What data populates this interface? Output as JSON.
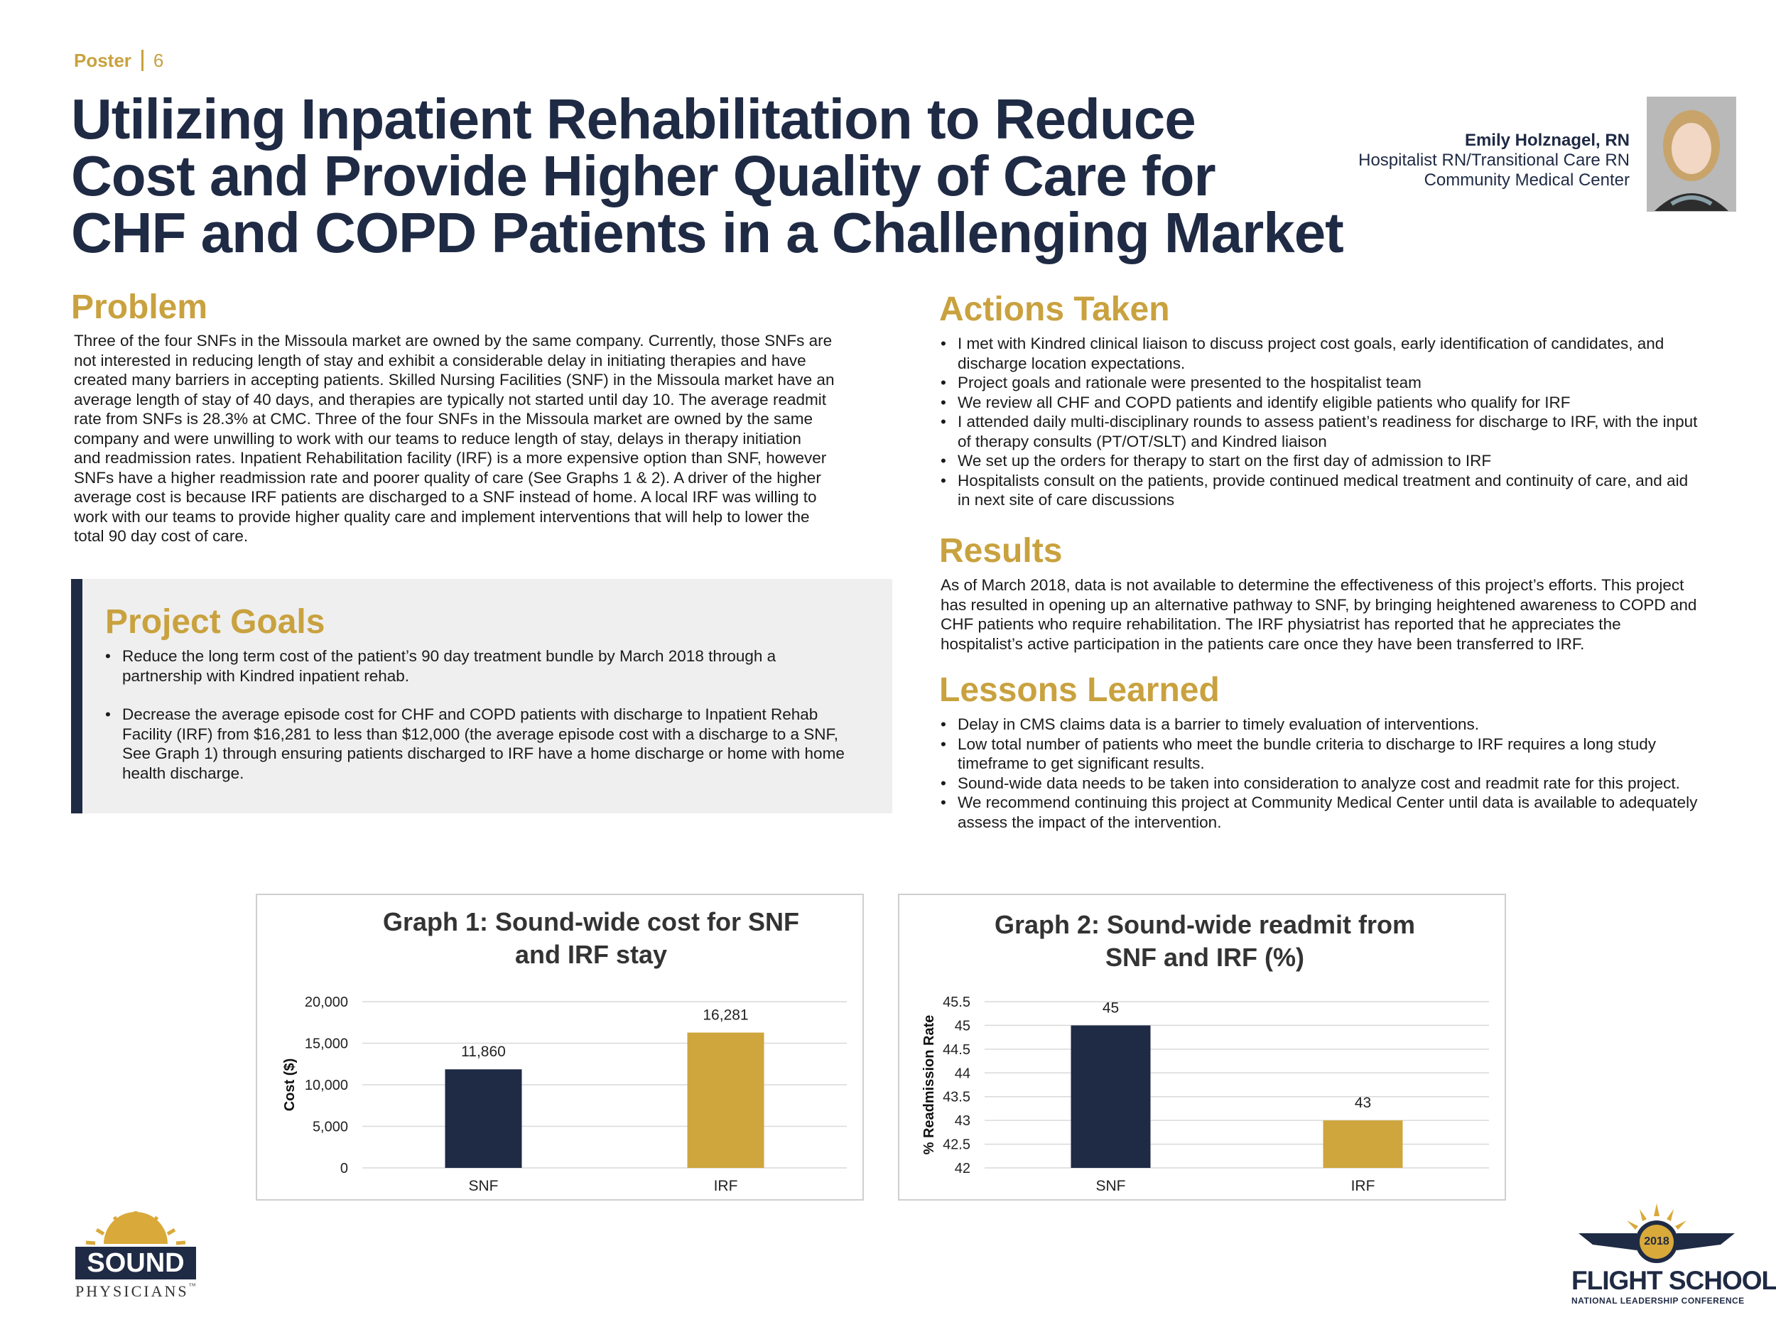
{
  "header": {
    "poster_label": "Poster",
    "poster_number": "6",
    "title_lines": [
      "Utilizing Inpatient Rehabilitation to Reduce",
      "Cost and Provide Higher Quality of Care for",
      "CHF and COPD Patients in a Challenging Market"
    ]
  },
  "author": {
    "name": "Emily Holznagel, RN",
    "role": "Hospitalist RN/Transitional Care RN",
    "organization": "Community Medical Center"
  },
  "problem": {
    "heading": "Problem",
    "lines": [
      "Three of the four SNFs in the Missoula market are owned by the same company.  Currently, those SNFs are",
      "not interested in reducing length of stay and exhibit a considerable delay in initiating therapies and have",
      "created many barriers in accepting patients.  Skilled Nursing Facilities (SNF) in the Missoula market have an",
      "average length of stay of 40 days, and therapies are typically not started until day 10. The average readmit",
      "rate from SNFs is 28.3% at CMC. Three of the four SNFs in the Missoula market are owned by the same",
      "company and were unwilling to work with our teams to reduce length of stay, delays in therapy initiation",
      "and readmission rates.  Inpatient Rehabilitation facility (IRF) is a more expensive option than SNF, however",
      "SNFs have a higher readmission rate and poorer quality of care (See Graphs 1 & 2).  A driver of the higher",
      "average cost is because IRF patients are discharged to a SNF instead of home.  A local IRF was willing to",
      "work with our teams to provide higher quality care and implement interventions that will help to lower the",
      "total 90 day cost of care."
    ]
  },
  "goals": {
    "heading": "Project Goals",
    "items": [
      [
        "Reduce the long term cost of the patient’s 90 day treatment bundle by March 2018 through a",
        "partnership with Kindred inpatient rehab."
      ],
      [
        "Decrease the average episode cost for CHF and COPD patients with discharge to Inpatient Rehab",
        "Facility (IRF) from $16,281 to less than $12,000 (the average episode cost with a discharge to a SNF,",
        "See Graph 1) through ensuring patients discharged to IRF have a home discharge or home with home",
        "health discharge."
      ]
    ]
  },
  "actions": {
    "heading": "Actions Taken",
    "items": [
      [
        "I met with Kindred clinical liaison to discuss project cost goals, early identification of candidates, and",
        "discharge location expectations."
      ],
      [
        "Project goals and rationale were presented to the hospitalist team"
      ],
      [
        "We review all CHF and COPD patients and identify eligible patients who qualify for IRF"
      ],
      [
        "I attended daily multi-disciplinary rounds to assess patient’s readiness for discharge to IRF, with the input",
        "of therapy consults (PT/OT/SLT) and Kindred liaison"
      ],
      [
        "We set up the orders for therapy to start on the first day of admission to IRF"
      ],
      [
        "Hospitalists consult on the patients, provide continued medical treatment and continuity of care, and aid",
        "in next site of care discussions"
      ]
    ]
  },
  "results": {
    "heading": "Results",
    "lines": [
      "As of March 2018, data is not available to determine the effectiveness of this project’s efforts. This project",
      "has resulted in opening up an alternative pathway to SNF, by bringing heightened awareness to COPD and",
      "CHF patients who require rehabilitation. The IRF physiatrist has reported that he appreciates the",
      "hospitalist’s active participation in the patients care once they have been transferred to IRF."
    ]
  },
  "lessons": {
    "heading": "Lessons Learned",
    "items": [
      [
        "Delay in CMS claims data is a barrier to timely evaluation of interventions."
      ],
      [
        "Low total number of patients who meet the bundle criteria to discharge to IRF requires a long study",
        "timeframe to get significant results."
      ],
      [
        "Sound-wide data needs to be taken into consideration to analyze cost and readmit rate for this project."
      ],
      [
        "We recommend continuing this project at Community Medical Center until data is available to adequately",
        "assess the impact of the intervention."
      ]
    ]
  },
  "chart_data": [
    {
      "type": "bar",
      "title": "Graph 1: Sound-wide cost for SNF and IRF stay",
      "title_lines": [
        "Graph 1: Sound-wide cost for SNF",
        "and IRF stay"
      ],
      "categories": [
        "SNF",
        "IRF"
      ],
      "values": [
        11860,
        16281
      ],
      "value_labels": [
        "11,860",
        "16,281"
      ],
      "ylabel": "Cost ($)",
      "xlabel": "",
      "ylim": [
        0,
        20000
      ],
      "yticks": [
        0,
        5000,
        10000,
        15000,
        20000
      ],
      "ytick_labels": [
        "0",
        "5,000",
        "10,000",
        "15,000",
        "20,000"
      ],
      "grid": true,
      "colors": [
        "#1f2a44",
        "#cfa63d"
      ]
    },
    {
      "type": "bar",
      "title": "Graph 2: Sound-wide readmit from SNF and IRF (%)",
      "title_lines": [
        "Graph 2: Sound-wide readmit from",
        "SNF and IRF (%)"
      ],
      "categories": [
        "SNF",
        "IRF"
      ],
      "values": [
        45,
        43
      ],
      "value_labels": [
        "45",
        "43"
      ],
      "ylabel": "% Readmission Rate",
      "xlabel": "",
      "ylim": [
        42,
        45.5
      ],
      "yticks": [
        42,
        42.5,
        43,
        43.5,
        44,
        44.5,
        45,
        45.5
      ],
      "ytick_labels": [
        "42",
        "42.5",
        "43",
        "43.5",
        "44",
        "44.5",
        "45",
        "45.5"
      ],
      "grid": true,
      "colors": [
        "#1f2a44",
        "#cfa63d"
      ]
    }
  ],
  "logos": {
    "sound_top": "SOUND",
    "sound_bottom": "PHYSICIANS",
    "sound_tm": "™",
    "flight_year": "2018",
    "flight_title": "FLIGHT SCHOOL",
    "flight_sub": "NATIONAL LEADERSHIP CONFERENCE"
  },
  "colors": {
    "navy": "#1f2a44",
    "gold": "#c9a23f",
    "panel": "#efefef"
  }
}
